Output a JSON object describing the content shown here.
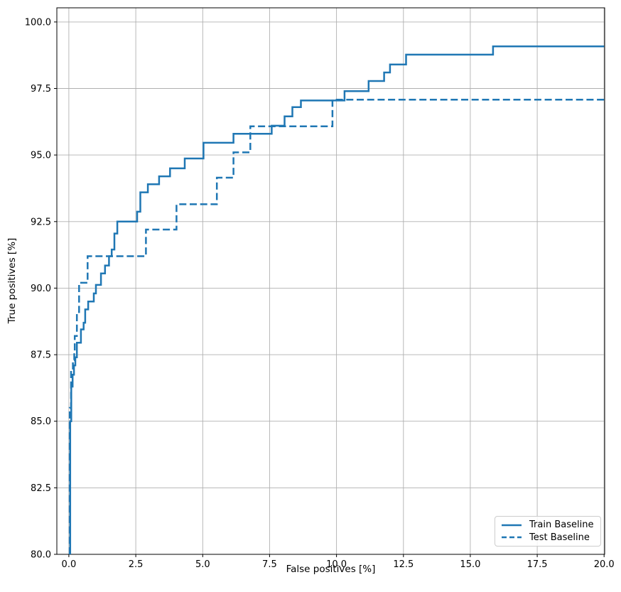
{
  "figure": {
    "background": "#ffffff"
  },
  "chart_data": {
    "type": "line",
    "subtype": "step",
    "title": "",
    "xlabel": "False positives [%]",
    "ylabel": "True positives [%]",
    "xlim": [
      -0.45,
      20.02
    ],
    "ylim": [
      80,
      100.53
    ],
    "grid": true,
    "legend_position": "lower right",
    "colors": {
      "line": "#1f77b4",
      "grid": "#b0b0b0",
      "spine": "#000000",
      "text": "#000000",
      "legend_border": "#cccccc"
    },
    "x_ticks": [
      {
        "value": 0.0,
        "label": "0.0"
      },
      {
        "value": 2.5,
        "label": "2.5"
      },
      {
        "value": 5.0,
        "label": "5.0"
      },
      {
        "value": 7.5,
        "label": "7.5"
      },
      {
        "value": 10.0,
        "label": "10.0"
      },
      {
        "value": 12.5,
        "label": "12.5"
      },
      {
        "value": 15.0,
        "label": "15.0"
      },
      {
        "value": 17.5,
        "label": "17.5"
      },
      {
        "value": 20.0,
        "label": "20.0"
      }
    ],
    "y_ticks": [
      {
        "value": 80.0,
        "label": "80.0"
      },
      {
        "value": 82.5,
        "label": "82.5"
      },
      {
        "value": 85.0,
        "label": "85.0"
      },
      {
        "value": 87.5,
        "label": "87.5"
      },
      {
        "value": 90.0,
        "label": "90.0"
      },
      {
        "value": 92.5,
        "label": "92.5"
      },
      {
        "value": 95.0,
        "label": "95.0"
      },
      {
        "value": 97.5,
        "label": "97.5"
      },
      {
        "value": 100.0,
        "label": "100.0"
      }
    ],
    "series": [
      {
        "name": "Train Baseline",
        "style": "solid",
        "line_width": 2.5,
        "points": [
          [
            0.05,
            80.0
          ],
          [
            0.05,
            85.0
          ],
          [
            0.09,
            85.0
          ],
          [
            0.09,
            86.3
          ],
          [
            0.14,
            86.3
          ],
          [
            0.14,
            86.75
          ],
          [
            0.19,
            86.75
          ],
          [
            0.19,
            87.1
          ],
          [
            0.24,
            87.1
          ],
          [
            0.24,
            87.4
          ],
          [
            0.3,
            87.4
          ],
          [
            0.3,
            87.95
          ],
          [
            0.45,
            87.95
          ],
          [
            0.45,
            88.45
          ],
          [
            0.55,
            88.45
          ],
          [
            0.55,
            88.7
          ],
          [
            0.61,
            88.7
          ],
          [
            0.61,
            89.2
          ],
          [
            0.72,
            89.2
          ],
          [
            0.72,
            89.5
          ],
          [
            0.93,
            89.5
          ],
          [
            0.93,
            89.8
          ],
          [
            1.01,
            89.8
          ],
          [
            1.01,
            90.12
          ],
          [
            1.2,
            90.12
          ],
          [
            1.2,
            90.55
          ],
          [
            1.35,
            90.55
          ],
          [
            1.35,
            90.85
          ],
          [
            1.5,
            90.85
          ],
          [
            1.5,
            91.2
          ],
          [
            1.6,
            91.2
          ],
          [
            1.6,
            91.45
          ],
          [
            1.7,
            91.45
          ],
          [
            1.7,
            92.05
          ],
          [
            1.81,
            92.05
          ],
          [
            1.81,
            92.5
          ],
          [
            2.55,
            92.5
          ],
          [
            2.55,
            92.87
          ],
          [
            2.67,
            92.87
          ],
          [
            2.67,
            93.6
          ],
          [
            2.95,
            93.6
          ],
          [
            2.95,
            93.9
          ],
          [
            3.37,
            93.9
          ],
          [
            3.37,
            94.2
          ],
          [
            3.78,
            94.2
          ],
          [
            3.78,
            94.5
          ],
          [
            4.33,
            94.5
          ],
          [
            4.33,
            94.87
          ],
          [
            5.03,
            94.87
          ],
          [
            5.03,
            95.46
          ],
          [
            6.15,
            95.46
          ],
          [
            6.15,
            95.8
          ],
          [
            7.58,
            95.8
          ],
          [
            7.58,
            96.1
          ],
          [
            8.06,
            96.1
          ],
          [
            8.06,
            96.45
          ],
          [
            8.35,
            96.45
          ],
          [
            8.35,
            96.8
          ],
          [
            8.67,
            96.8
          ],
          [
            8.67,
            97.05
          ],
          [
            10.3,
            97.05
          ],
          [
            10.3,
            97.4
          ],
          [
            11.2,
            97.4
          ],
          [
            11.2,
            97.78
          ],
          [
            11.78,
            97.78
          ],
          [
            11.78,
            98.1
          ],
          [
            12.0,
            98.1
          ],
          [
            12.0,
            98.4
          ],
          [
            12.6,
            98.4
          ],
          [
            12.6,
            98.77
          ],
          [
            15.85,
            98.77
          ],
          [
            15.85,
            99.08
          ],
          [
            20.0,
            99.08
          ]
        ]
      },
      {
        "name": "Test Baseline",
        "style": "dashed",
        "line_width": 2.5,
        "points": [
          [
            0.03,
            80.0
          ],
          [
            0.03,
            85.5
          ],
          [
            0.08,
            85.5
          ],
          [
            0.08,
            86.9
          ],
          [
            0.15,
            86.9
          ],
          [
            0.15,
            87.3
          ],
          [
            0.2,
            87.3
          ],
          [
            0.2,
            87.65
          ],
          [
            0.22,
            87.65
          ],
          [
            0.22,
            88.2
          ],
          [
            0.3,
            88.2
          ],
          [
            0.3,
            89.1
          ],
          [
            0.38,
            89.1
          ],
          [
            0.38,
            90.2
          ],
          [
            0.7,
            90.2
          ],
          [
            0.7,
            91.2
          ],
          [
            2.88,
            91.2
          ],
          [
            2.88,
            92.2
          ],
          [
            4.02,
            92.2
          ],
          [
            4.02,
            93.15
          ],
          [
            5.53,
            93.15
          ],
          [
            5.53,
            94.15
          ],
          [
            6.15,
            94.15
          ],
          [
            6.15,
            95.1
          ],
          [
            6.78,
            95.1
          ],
          [
            6.78,
            96.08
          ],
          [
            9.85,
            96.08
          ],
          [
            9.85,
            97.08
          ],
          [
            20.0,
            97.08
          ]
        ]
      }
    ]
  }
}
